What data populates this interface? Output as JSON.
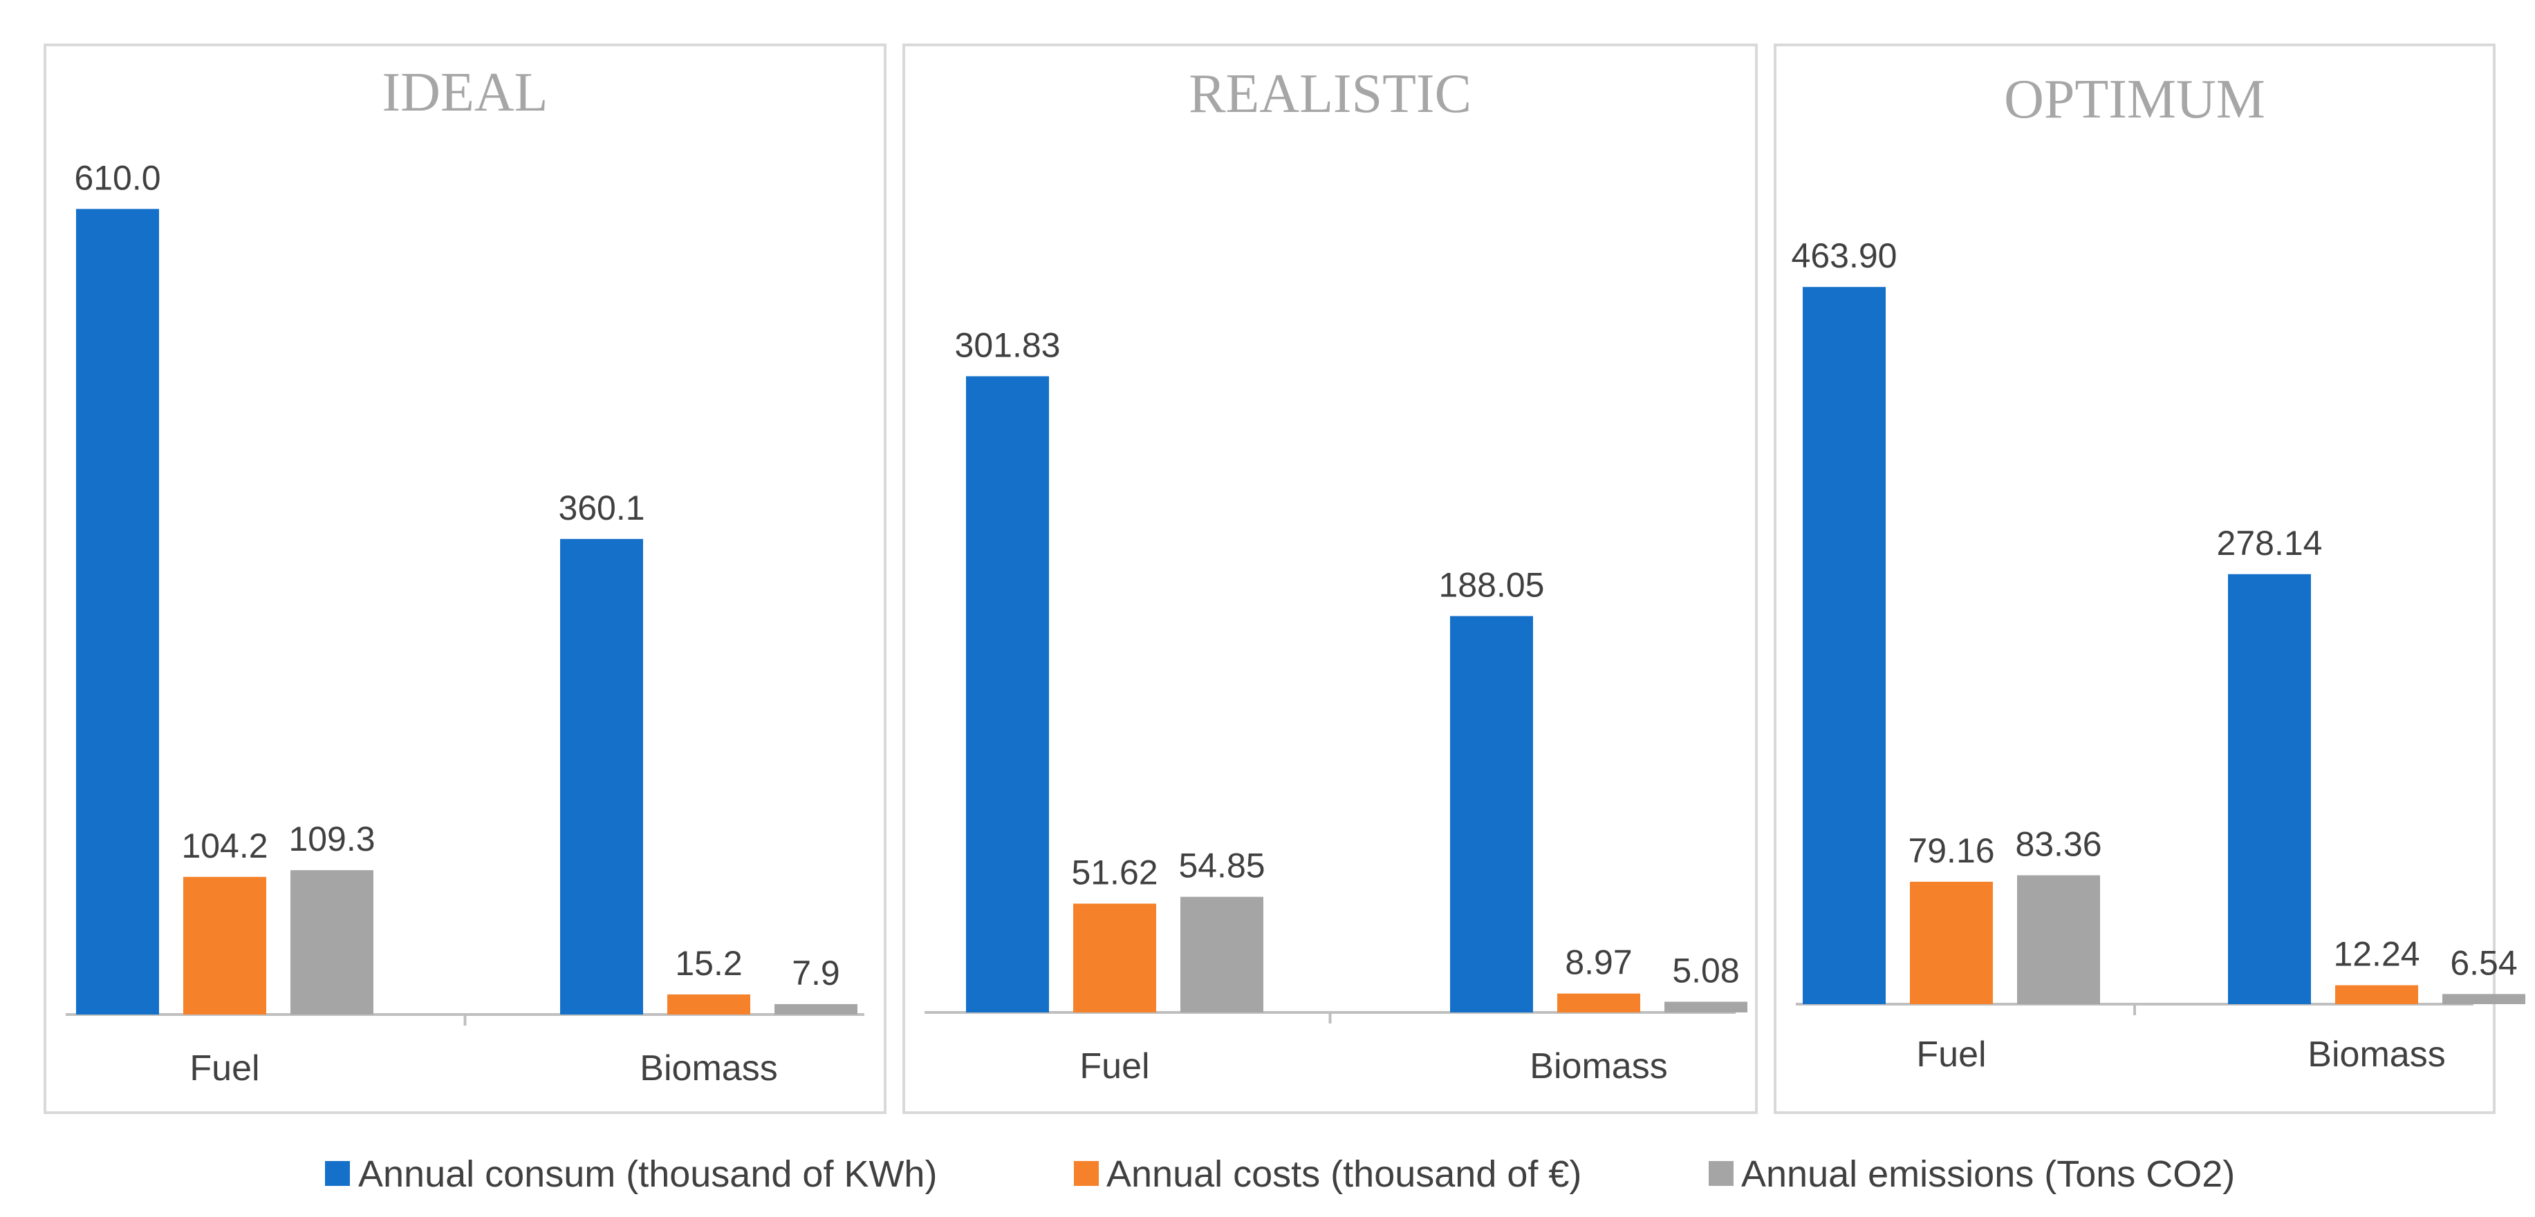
{
  "colors": {
    "series": [
      "#1570c9",
      "#f5812a",
      "#a5a5a5"
    ],
    "panel_border": "#d9d9d9",
    "axis": "#bfbfbf",
    "title": "#a6a6a6",
    "text": "#404040"
  },
  "legend": [
    "Annual consum (thousand of KWh)",
    "Annual costs (thousand of €)",
    "Annual emissions (Tons CO2)"
  ],
  "chart_data": [
    {
      "type": "bar",
      "title": "IDEAL",
      "categories": [
        "Fuel",
        "Biomass"
      ],
      "ylim": [
        0,
        640
      ],
      "series": [
        {
          "name": "Annual consum (thousand of KWh)",
          "values": [
            610.0,
            360.1
          ],
          "labels": [
            "610.0",
            "360.1"
          ]
        },
        {
          "name": "Annual costs (thousand of €)",
          "values": [
            104.2,
            15.2
          ],
          "labels": [
            "104.2",
            "15.2"
          ]
        },
        {
          "name": "Annual emissions (Tons CO2)",
          "values": [
            109.3,
            7.9
          ],
          "labels": [
            "109.3",
            "7.9"
          ]
        }
      ]
    },
    {
      "type": "bar",
      "title": "REALISTIC",
      "categories": [
        "Fuel",
        "Biomass"
      ],
      "ylim": [
        0,
        400
      ],
      "series": [
        {
          "name": "Annual consum (thousand of KWh)",
          "values": [
            301.83,
            188.05
          ],
          "labels": [
            "301.83",
            "188.05"
          ]
        },
        {
          "name": "Annual costs (thousand of €)",
          "values": [
            51.62,
            8.97
          ],
          "labels": [
            "51.62",
            "8.97"
          ]
        },
        {
          "name": "Annual emissions (Tons CO2)",
          "values": [
            54.85,
            5.08
          ],
          "labels": [
            "54.85",
            "5.08"
          ]
        }
      ]
    },
    {
      "type": "bar",
      "title": "OPTIMUM",
      "categories": [
        "Fuel",
        "Biomass"
      ],
      "ylim": [
        0,
        540
      ],
      "series": [
        {
          "name": "Annual consum (thousand of KWh)",
          "values": [
            463.9,
            278.14
          ],
          "labels": [
            "463.90",
            "278.14"
          ]
        },
        {
          "name": "Annual costs (thousand of €)",
          "values": [
            79.16,
            12.24
          ],
          "labels": [
            "79.16",
            "12.24"
          ]
        },
        {
          "name": "Annual emissions (Tons CO2)",
          "values": [
            83.36,
            6.54
          ],
          "labels": [
            "83.36",
            "6.54"
          ]
        }
      ]
    }
  ]
}
